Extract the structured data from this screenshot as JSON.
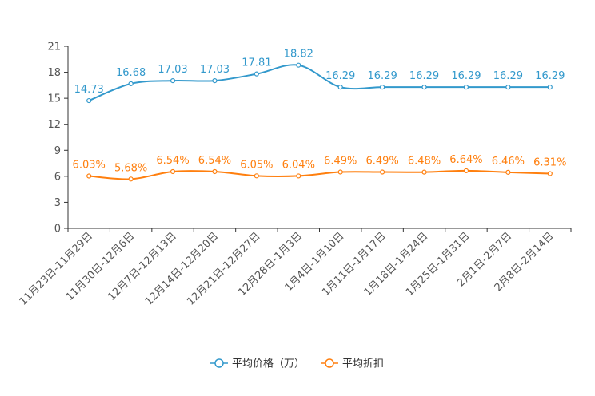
{
  "chart_data": {
    "type": "line",
    "categories": [
      "11月23日-11月29日",
      "11月30日-12月6日",
      "12月7日-12月13日",
      "12月14日-12月20日",
      "12月21日-12月27日",
      "12月28日-1月3日",
      "1月4日-1月10日",
      "1月11日-1月17日",
      "1月18日-1月24日",
      "1月25日-1月31日",
      "2月1日-2月7日",
      "2月8日-2月14日"
    ],
    "ylim": [
      0,
      21
    ],
    "yticks": [
      0,
      3,
      6,
      9,
      12,
      15,
      18,
      21
    ],
    "series": [
      {
        "name": "平均价格（万）",
        "color": "#3399cc",
        "values": [
          14.73,
          16.68,
          17.03,
          17.03,
          17.81,
          18.82,
          16.29,
          16.29,
          16.29,
          16.29,
          16.29,
          16.29
        ],
        "labels": [
          "14.73",
          "16.68",
          "17.03",
          "17.03",
          "17.81",
          "18.82",
          "16.29",
          "16.29",
          "16.29",
          "16.29",
          "16.29",
          "16.29"
        ]
      },
      {
        "name": "平均折扣",
        "color": "#ff7f0e",
        "values": [
          6.03,
          5.68,
          6.54,
          6.54,
          6.05,
          6.04,
          6.49,
          6.49,
          6.48,
          6.64,
          6.46,
          6.31
        ],
        "labels": [
          "6.03%",
          "5.68%",
          "6.54%",
          "6.54%",
          "6.05%",
          "6.04%",
          "6.49%",
          "6.49%",
          "6.48%",
          "6.64%",
          "6.46%",
          "6.31%"
        ]
      }
    ],
    "legend_position": "bottom-center",
    "grid": false
  }
}
